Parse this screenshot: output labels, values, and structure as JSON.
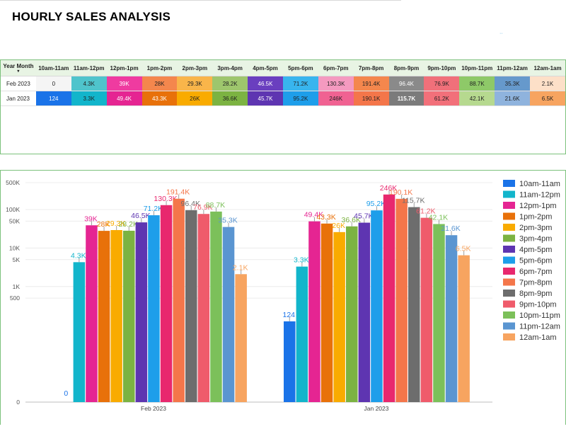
{
  "page": {
    "title": "HOURLY SALES ANALYSIS"
  },
  "table": {
    "row_header": "Year Month",
    "columns": [
      "10am-11am",
      "11am-12pm",
      "12pm-1pm",
      "1pm-2pm",
      "2pm-3pm",
      "3pm-4pm",
      "4pm-5pm",
      "5pm-6pm",
      "6pm-7pm",
      "7pm-8pm",
      "8pm-9pm",
      "9pm-10pm",
      "10pm-11pm",
      "11pm-12am",
      "12am-1am"
    ],
    "rows": [
      {
        "label": "Feb 2023",
        "cells": [
          "0",
          "4.3K",
          "39K",
          "28K",
          "29.3K",
          "28.2K",
          "46.5K",
          "71.2K",
          "130.3K",
          "191.4K",
          "96.4K",
          "76.9K",
          "88.7K",
          "35.3K",
          "2.1K"
        ],
        "colors": [
          "#f5f5f5",
          "#4fc4cc",
          "#ef3ba0",
          "#f4874d",
          "#f9b54a",
          "#9ec66d",
          "#6a3fbf",
          "#38b5ee",
          "#f49ac0",
          "#f4874d",
          "#8a8a8a",
          "#f0707a",
          "#8ec968",
          "#6699cc",
          "#fde0c8"
        ]
      },
      {
        "label": "Jan 2023",
        "cells": [
          "124",
          "3.3K",
          "49.4K",
          "43.3K",
          "26K",
          "36.6K",
          "45.7K",
          "95.2K",
          "246K",
          "190.1K",
          "115.7K",
          "61.2K",
          "42.1K",
          "21.6K",
          "6.5K"
        ],
        "colors": [
          "#1a73e8",
          "#12b5cb",
          "#e52592",
          "#e8710a",
          "#f9ab00",
          "#7cb342",
          "#5e35b1",
          "#1e9eea",
          "#f06292",
          "#f4764a",
          "#7b7b7b",
          "#f2707a",
          "#b6d98f",
          "#8fb3dd",
          "#f7a460"
        ]
      }
    ]
  },
  "chart_data": {
    "type": "bar",
    "categories": [
      "Feb 2023",
      "Jan 2023"
    ],
    "y_scale": "symlog",
    "y_ticks": [
      "0",
      "500",
      "1K",
      "5K",
      "10K",
      "50K",
      "100K",
      "500K"
    ],
    "series": [
      {
        "name": "10am-11am",
        "color": "#1a73e8",
        "values": [
          0,
          124
        ],
        "labels": [
          "0",
          "124"
        ]
      },
      {
        "name": "11am-12pm",
        "color": "#12b5cb",
        "values": [
          4300,
          3300
        ],
        "labels": [
          "4.3K",
          "3.3K"
        ]
      },
      {
        "name": "12pm-1pm",
        "color": "#e52592",
        "values": [
          39000,
          49400
        ],
        "labels": [
          "39K",
          "49.4K"
        ]
      },
      {
        "name": "1pm-2pm",
        "color": "#e8710a",
        "values": [
          28000,
          43300
        ],
        "labels": [
          "28K",
          "43.3K"
        ]
      },
      {
        "name": "2pm-3pm",
        "color": "#f9ab00",
        "values": [
          29300,
          26000
        ],
        "labels": [
          "29.3K",
          "26K"
        ]
      },
      {
        "name": "3pm-4pm",
        "color": "#7cb342",
        "values": [
          28200,
          36600
        ],
        "labels": [
          "28.2K",
          "36.6K"
        ]
      },
      {
        "name": "4pm-5pm",
        "color": "#5e35b1",
        "values": [
          46500,
          45700
        ],
        "labels": [
          "46.5K",
          "45.7K"
        ]
      },
      {
        "name": "5pm-6pm",
        "color": "#1e9eea",
        "values": [
          71200,
          95200
        ],
        "labels": [
          "71.2K",
          "95.2K"
        ]
      },
      {
        "name": "6pm-7pm",
        "color": "#e8286e",
        "values": [
          130300,
          246000
        ],
        "labels": [
          "130.3K",
          "246K"
        ]
      },
      {
        "name": "7pm-8pm",
        "color": "#f4764a",
        "values": [
          191400,
          190100
        ],
        "labels": [
          "191.4K",
          "190.1K"
        ]
      },
      {
        "name": "8pm-9pm",
        "color": "#6d6d6d",
        "values": [
          96400,
          115700
        ],
        "labels": [
          "96.4K",
          "115.7K"
        ]
      },
      {
        "name": "9pm-10pm",
        "color": "#ef5b6b",
        "values": [
          76900,
          61200
        ],
        "labels": [
          "76.9K",
          "61.2K"
        ]
      },
      {
        "name": "10pm-11pm",
        "color": "#7cc05a",
        "values": [
          88700,
          42100
        ],
        "labels": [
          "88.7K",
          "42.1K"
        ]
      },
      {
        "name": "11pm-12am",
        "color": "#5a95d1",
        "values": [
          35300,
          21600
        ],
        "labels": [
          "35.3K",
          "21.6K"
        ]
      },
      {
        "name": "12am-1am",
        "color": "#f7a460",
        "values": [
          2100,
          6500
        ],
        "labels": [
          "2.1K",
          "6.5K"
        ]
      }
    ],
    "legend_position": "right",
    "grid": true,
    "title": "",
    "xlabel": "",
    "ylabel": ""
  }
}
